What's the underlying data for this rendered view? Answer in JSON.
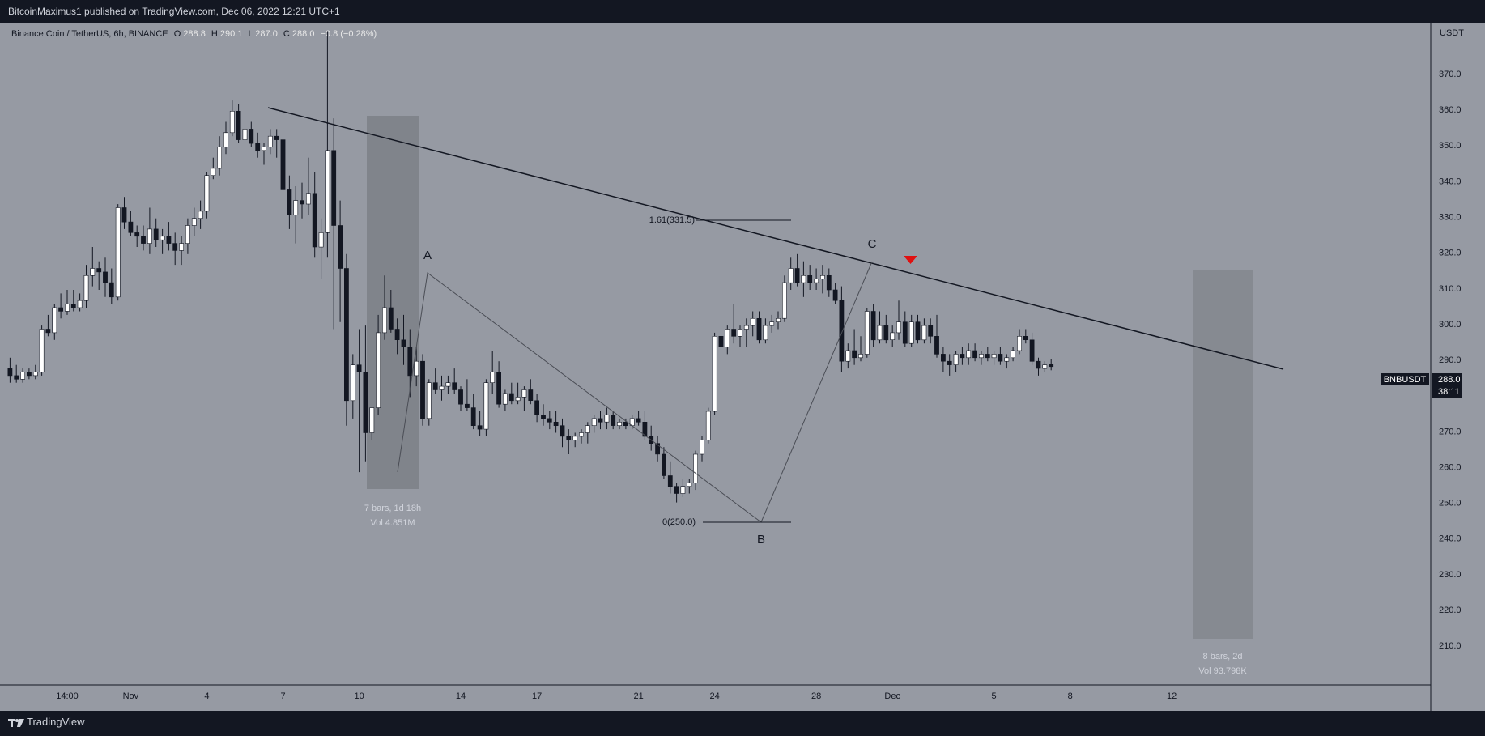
{
  "header": {
    "published": "BitcoinMaximus1 published on TradingView.com, Dec 06, 2022 12:21 UTC+1"
  },
  "footer": {
    "brand": "TradingView"
  },
  "legend": {
    "symbol": "Binance Coin / TetherUS, 6h, BINANCE",
    "o_label": "O",
    "o": "288.8",
    "h_label": "H",
    "h": "290.1",
    "l_label": "L",
    "l": "287.0",
    "c_label": "C",
    "c": "288.0",
    "change": "−0.8 (−0.28%)"
  },
  "price_tag": {
    "symbol": "BNBUSDT",
    "price": "288.0",
    "countdown": "38:11"
  },
  "annotations": {
    "fib_161": "1.61(331.5)",
    "fib_0": "0(250.0)",
    "wave_a": "A",
    "wave_b": "B",
    "wave_c": "C",
    "range1_bars": "7 bars, 1d 18h",
    "range1_vol": "Vol 4.851M",
    "range2_bars": "8 bars, 2d",
    "range2_vol": "Vol 93.798K"
  },
  "colors": {
    "background": "#969aa3",
    "up_body": "#ffffff",
    "down_body": "#131722",
    "marker": "#e01010",
    "panel": "#131722"
  },
  "chart_data": {
    "type": "candlestick",
    "y_axis_label": "USDT",
    "ylim": [
      203,
      382
    ],
    "y_ticks": [
      210,
      220,
      230,
      240,
      250,
      260,
      270,
      280,
      290,
      300,
      310,
      320,
      330,
      340,
      350,
      360,
      370
    ],
    "x_ticks": [
      {
        "label": "14:00",
        "bar": 9
      },
      {
        "label": "Nov",
        "bar": 19
      },
      {
        "label": "4",
        "bar": 31
      },
      {
        "label": "7",
        "bar": 43
      },
      {
        "label": "10",
        "bar": 55
      },
      {
        "label": "14",
        "bar": 71
      },
      {
        "label": "17",
        "bar": 83
      },
      {
        "label": "21",
        "bar": 99
      },
      {
        "label": "24",
        "bar": 111
      },
      {
        "label": "28",
        "bar": 127
      },
      {
        "label": "Dec",
        "bar": 139
      },
      {
        "label": "5",
        "bar": 155
      },
      {
        "label": "8",
        "bar": 167
      },
      {
        "label": "12",
        "bar": 183
      }
    ],
    "ohlc": [
      [
        287.5,
        290.5,
        283.5,
        285.5
      ],
      [
        285.5,
        288.5,
        283.5,
        284.5
      ],
      [
        284.5,
        287.5,
        283.5,
        286.5
      ],
      [
        286.5,
        287.5,
        284.5,
        285.5
      ],
      [
        285.5,
        288.5,
        284.5,
        286.5
      ],
      [
        286.5,
        299.5,
        285.5,
        298.5
      ],
      [
        298.5,
        302.5,
        296.5,
        297.5
      ],
      [
        297.5,
        305.5,
        295.5,
        304.5
      ],
      [
        304.5,
        308.5,
        301.5,
        303.5
      ],
      [
        303.5,
        309.5,
        302.5,
        305.5
      ],
      [
        305.5,
        309.5,
        303.5,
        304.5
      ],
      [
        304.5,
        308.5,
        303.5,
        306.5
      ],
      [
        306.5,
        316.5,
        304.5,
        313.5
      ],
      [
        313.5,
        321.5,
        310.5,
        315.5
      ],
      [
        315.5,
        317.5,
        309.5,
        314.5
      ],
      [
        314.5,
        318.5,
        307.5,
        311.5
      ],
      [
        311.5,
        315.5,
        305.5,
        307.5
      ],
      [
        307.5,
        333.5,
        306.5,
        332.5
      ],
      [
        332.5,
        335.5,
        326.5,
        328.5
      ],
      [
        328.5,
        331.5,
        324.5,
        325.5
      ],
      [
        325.5,
        327.5,
        321.5,
        324.5
      ],
      [
        324.5,
        327.5,
        320.5,
        322.5
      ],
      [
        322.5,
        332.5,
        319.5,
        326.5
      ],
      [
        326.5,
        329.5,
        321.5,
        323.5
      ],
      [
        323.5,
        326.5,
        319.5,
        324.5
      ],
      [
        324.5,
        328.5,
        320.5,
        322.5
      ],
      [
        322.5,
        325.5,
        316.5,
        320.5
      ],
      [
        320.5,
        324.5,
        316.5,
        322.5
      ],
      [
        322.5,
        329.5,
        319.5,
        327.5
      ],
      [
        327.5,
        332.5,
        324.5,
        329.5
      ],
      [
        329.5,
        334.5,
        326.5,
        331.5
      ],
      [
        331.5,
        342.5,
        329.5,
        341.5
      ],
      [
        341.5,
        346.5,
        340.5,
        343.5
      ],
      [
        343.5,
        352.5,
        341.5,
        349.5
      ],
      [
        349.5,
        356.5,
        347.5,
        353.5
      ],
      [
        353.5,
        362.5,
        352.5,
        359.5
      ],
      [
        359.5,
        361.5,
        350.5,
        351.5
      ],
      [
        351.5,
        356.5,
        347.5,
        354.5
      ],
      [
        354.5,
        356.5,
        349.5,
        350.5
      ],
      [
        350.5,
        353.5,
        346.5,
        348.5
      ],
      [
        348.5,
        350.5,
        344.5,
        349.5
      ],
      [
        349.5,
        354.5,
        347.5,
        352.5
      ],
      [
        352.5,
        354.5,
        346.5,
        351.5
      ],
      [
        351.5,
        353.5,
        336.5,
        337.5
      ],
      [
        337.5,
        341.5,
        326.5,
        330.5
      ],
      [
        330.5,
        338.5,
        322.5,
        334.5
      ],
      [
        334.5,
        339.5,
        329.5,
        333.5
      ],
      [
        333.5,
        346.5,
        330.5,
        336.5
      ],
      [
        336.5,
        342.5,
        318.5,
        321.5
      ],
      [
        321.5,
        329.5,
        312.5,
        325.5
      ],
      [
        325.5,
        382.0,
        318.5,
        348.5
      ],
      [
        348.5,
        357.5,
        298.5,
        327.5
      ],
      [
        327.5,
        334.5,
        300.5,
        315.5
      ],
      [
        315.5,
        319.5,
        271.5,
        278.5
      ],
      [
        278.5,
        291.5,
        273.5,
        288.5
      ],
      [
        288.5,
        298.5,
        258.5,
        286.5
      ],
      [
        286.5,
        299.5,
        261.5,
        269.5
      ],
      [
        269.5,
        276.5,
        267.5,
        276.5
      ],
      [
        276.5,
        302.5,
        274.5,
        297.5
      ],
      [
        297.5,
        313.5,
        295.5,
        304.5
      ],
      [
        304.5,
        309.5,
        297.5,
        298.5
      ],
      [
        298.5,
        301.5,
        291.5,
        295.5
      ],
      [
        295.5,
        302.5,
        288.5,
        293.5
      ],
      [
        293.5,
        298.5,
        279.5,
        285.5
      ],
      [
        285.5,
        293.5,
        282.5,
        289.5
      ],
      [
        289.5,
        291.5,
        271.5,
        273.5
      ],
      [
        273.5,
        284.5,
        271.5,
        283.5
      ],
      [
        283.5,
        287.5,
        280.5,
        281.5
      ],
      [
        281.5,
        285.5,
        278.5,
        282.5
      ],
      [
        282.5,
        285.5,
        280.5,
        283.5
      ],
      [
        283.5,
        287.5,
        280.5,
        281.5
      ],
      [
        281.5,
        282.5,
        275.5,
        277.5
      ],
      [
        277.5,
        284.5,
        275.5,
        276.5
      ],
      [
        276.5,
        280.5,
        270.5,
        271.5
      ],
      [
        271.5,
        275.5,
        268.5,
        270.5
      ],
      [
        270.5,
        284.5,
        268.5,
        283.5
      ],
      [
        283.5,
        292.5,
        280.5,
        286.5
      ],
      [
        286.5,
        289.5,
        276.5,
        277.5
      ],
      [
        277.5,
        281.5,
        275.5,
        280.5
      ],
      [
        280.5,
        283.5,
        277.5,
        278.5
      ],
      [
        278.5,
        283.5,
        277.5,
        279.5
      ],
      [
        279.5,
        282.5,
        275.5,
        281.5
      ],
      [
        281.5,
        284.5,
        277.5,
        278.5
      ],
      [
        278.5,
        280.5,
        272.5,
        274.5
      ],
      [
        274.5,
        277.5,
        271.5,
        273.5
      ],
      [
        273.5,
        275.5,
        270.5,
        272.5
      ],
      [
        272.5,
        275.5,
        269.5,
        271.5
      ],
      [
        271.5,
        273.5,
        265.5,
        268.5
      ],
      [
        268.5,
        270.5,
        263.5,
        267.5
      ],
      [
        267.5,
        269.5,
        265.5,
        268.5
      ],
      [
        268.5,
        270.5,
        266.5,
        269.5
      ],
      [
        269.5,
        272.5,
        266.5,
        271.5
      ],
      [
        271.5,
        274.5,
        269.5,
        273.5
      ],
      [
        273.5,
        275.5,
        270.5,
        272.5
      ],
      [
        272.5,
        276.5,
        270.5,
        274.5
      ],
      [
        274.5,
        275.5,
        270.5,
        271.5
      ],
      [
        271.5,
        273.5,
        270.5,
        272.5
      ],
      [
        272.5,
        273.5,
        270.5,
        271.5
      ],
      [
        271.5,
        274.5,
        270.5,
        273.5
      ],
      [
        273.5,
        275.5,
        271.5,
        272.5
      ],
      [
        272.5,
        275.5,
        267.5,
        268.5
      ],
      [
        268.5,
        271.5,
        264.5,
        266.5
      ],
      [
        266.5,
        268.5,
        261.5,
        263.5
      ],
      [
        263.5,
        265.5,
        256.5,
        257.5
      ],
      [
        257.5,
        261.5,
        252.5,
        254.5
      ],
      [
        254.5,
        255.5,
        250.0,
        252.5
      ],
      [
        252.5,
        256.5,
        251.5,
        254.5
      ],
      [
        254.5,
        256.5,
        252.5,
        255.5
      ],
      [
        255.5,
        264.5,
        253.5,
        263.5
      ],
      [
        263.5,
        268.5,
        261.5,
        267.5
      ],
      [
        267.5,
        276.5,
        266.5,
        275.5
      ],
      [
        275.5,
        297.5,
        274.5,
        296.5
      ],
      [
        296.5,
        300.5,
        290.5,
        293.5
      ],
      [
        293.5,
        299.5,
        291.5,
        298.5
      ],
      [
        298.5,
        305.5,
        294.5,
        296.5
      ],
      [
        296.5,
        299.5,
        293.5,
        298.5
      ],
      [
        298.5,
        301.5,
        293.5,
        299.5
      ],
      [
        299.5,
        303.5,
        296.5,
        301.5
      ],
      [
        301.5,
        303.5,
        294.5,
        295.5
      ],
      [
        295.5,
        301.5,
        294.5,
        299.5
      ],
      [
        299.5,
        302.5,
        297.5,
        300.5
      ],
      [
        300.5,
        303.5,
        298.5,
        301.5
      ],
      [
        301.5,
        313.5,
        300.5,
        311.5
      ],
      [
        311.5,
        318.5,
        309.5,
        315.5
      ],
      [
        315.5,
        319.5,
        310.5,
        311.5
      ],
      [
        311.5,
        317.5,
        307.5,
        313.5
      ],
      [
        313.5,
        316.5,
        309.5,
        311.5
      ],
      [
        311.5,
        315.5,
        309.5,
        312.5
      ],
      [
        312.5,
        316.5,
        308.5,
        313.5
      ],
      [
        313.5,
        315.5,
        307.5,
        309.5
      ],
      [
        309.5,
        311.5,
        305.5,
        306.5
      ],
      [
        306.5,
        310.5,
        286.5,
        289.5
      ],
      [
        289.5,
        294.5,
        287.5,
        292.5
      ],
      [
        292.5,
        298.5,
        288.5,
        290.5
      ],
      [
        290.5,
        296.5,
        289.5,
        291.5
      ],
      [
        291.5,
        304.5,
        290.5,
        303.5
      ],
      [
        303.5,
        305.5,
        293.5,
        295.5
      ],
      [
        295.5,
        303.5,
        294.5,
        299.5
      ],
      [
        299.5,
        302.5,
        294.5,
        295.5
      ],
      [
        295.5,
        299.5,
        293.5,
        297.5
      ],
      [
        297.5,
        306.5,
        295.5,
        300.5
      ],
      [
        300.5,
        303.5,
        293.5,
        294.5
      ],
      [
        294.5,
        302.5,
        293.5,
        300.5
      ],
      [
        300.5,
        302.5,
        294.5,
        295.5
      ],
      [
        295.5,
        301.5,
        294.5,
        299.5
      ],
      [
        299.5,
        301.5,
        294.5,
        296.5
      ],
      [
        296.5,
        302.5,
        290.5,
        291.5
      ],
      [
        291.5,
        293.5,
        286.5,
        289.5
      ],
      [
        289.5,
        291.5,
        285.5,
        288.5
      ],
      [
        288.5,
        292.5,
        286.5,
        291.5
      ],
      [
        291.5,
        293.5,
        288.5,
        290.5
      ],
      [
        290.5,
        294.5,
        288.5,
        292.5
      ],
      [
        292.5,
        294.5,
        289.5,
        290.5
      ],
      [
        290.5,
        292.5,
        288.5,
        291.5
      ],
      [
        291.5,
        293.5,
        289.5,
        290.5
      ],
      [
        290.5,
        292.5,
        288.5,
        291.5
      ],
      [
        291.5,
        293.5,
        288.5,
        289.5
      ],
      [
        289.5,
        291.5,
        287.5,
        290.5
      ],
      [
        290.5,
        293.5,
        289.5,
        292.5
      ],
      [
        292.5,
        298.5,
        291.5,
        296.5
      ],
      [
        296.5,
        298.5,
        294.5,
        295.5
      ],
      [
        295.5,
        297.5,
        288.5,
        289.5
      ],
      [
        289.5,
        290.5,
        285.5,
        287.5
      ],
      [
        287.5,
        289.5,
        286.5,
        288.5
      ],
      [
        288.8,
        290.1,
        287.0,
        288.0
      ]
    ]
  }
}
